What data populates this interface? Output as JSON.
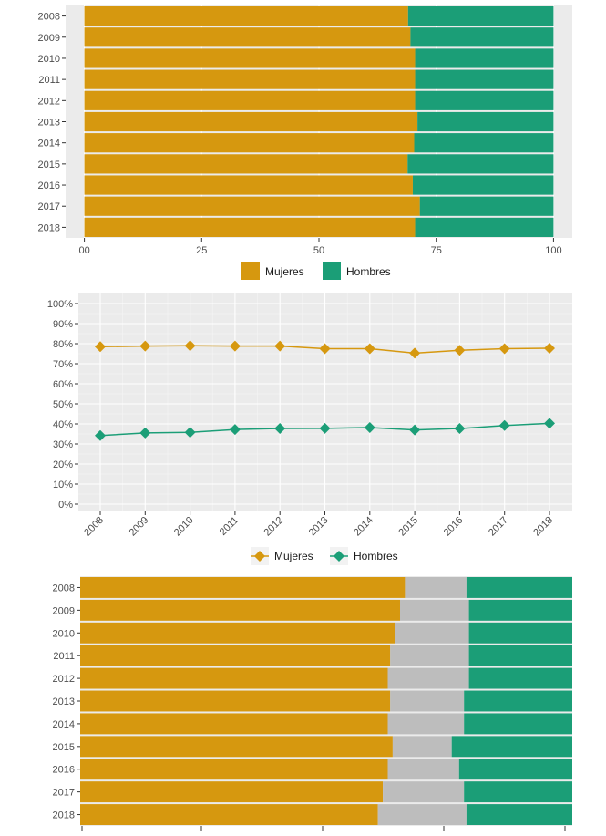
{
  "colors": {
    "mujeres": "#d6980f",
    "hombres": "#1b9e77",
    "otros": "#bdbdbd",
    "panel": "#ebebeb",
    "grid": "#ffffff"
  },
  "chart_data": [
    {
      "type": "bar",
      "orientation": "horizontal",
      "stacked": true,
      "categories": [
        "2008",
        "2009",
        "2010",
        "2011",
        "2012",
        "2013",
        "2014",
        "2015",
        "2016",
        "2017",
        "2018"
      ],
      "series": [
        {
          "name": "Mujeres",
          "values": [
            69,
            69.5,
            70.5,
            70.5,
            70.5,
            71,
            70.3,
            68.9,
            70,
            71.5,
            70.5
          ]
        },
        {
          "name": "Hombres",
          "values": [
            31,
            30.5,
            29.5,
            29.5,
            29.5,
            29,
            29.7,
            31.1,
            30,
            28.5,
            29.5
          ]
        }
      ],
      "x_ticks": [
        "00",
        "25",
        "50",
        "75",
        "100"
      ],
      "xlim": [
        -4,
        104
      ],
      "legend": "bottom"
    },
    {
      "type": "line",
      "x": [
        "2008",
        "2009",
        "2010",
        "2011",
        "2012",
        "2013",
        "2014",
        "2015",
        "2016",
        "2017",
        "2018"
      ],
      "series": [
        {
          "name": "Mujeres",
          "values": [
            78.5,
            78.8,
            79,
            78.8,
            78.8,
            77.5,
            77.5,
            75.3,
            76.7,
            77.5,
            77.7
          ]
        },
        {
          "name": "Hombres",
          "values": [
            34.2,
            35.5,
            35.8,
            37.2,
            37.7,
            37.8,
            38.2,
            37,
            37.7,
            39.2,
            40.3
          ]
        }
      ],
      "y_ticks": [
        "0%",
        "10%",
        "20%",
        "30%",
        "40%",
        "50%",
        "60%",
        "70%",
        "80%",
        "90%",
        "100%"
      ],
      "ylim": [
        0,
        100
      ],
      "legend": "bottom"
    },
    {
      "type": "bar",
      "orientation": "horizontal",
      "stacked": true,
      "categories": [
        "2008",
        "2009",
        "2010",
        "2011",
        "2012",
        "2013",
        "2014",
        "2015",
        "2016",
        "2017",
        "2018"
      ],
      "series": [
        {
          "values": [
            66,
            65,
            64,
            63,
            62.5,
            63,
            62.5,
            63.5,
            62.5,
            61.5,
            60.5
          ]
        },
        {
          "values": [
            12.5,
            14,
            15,
            16,
            16.5,
            15,
            15.5,
            12,
            14.5,
            16.5,
            18
          ]
        },
        {
          "values": [
            21.5,
            21,
            21,
            21,
            21,
            22,
            22,
            24.5,
            23,
            22,
            21.5
          ]
        }
      ],
      "xlim": [
        0,
        100
      ]
    }
  ]
}
